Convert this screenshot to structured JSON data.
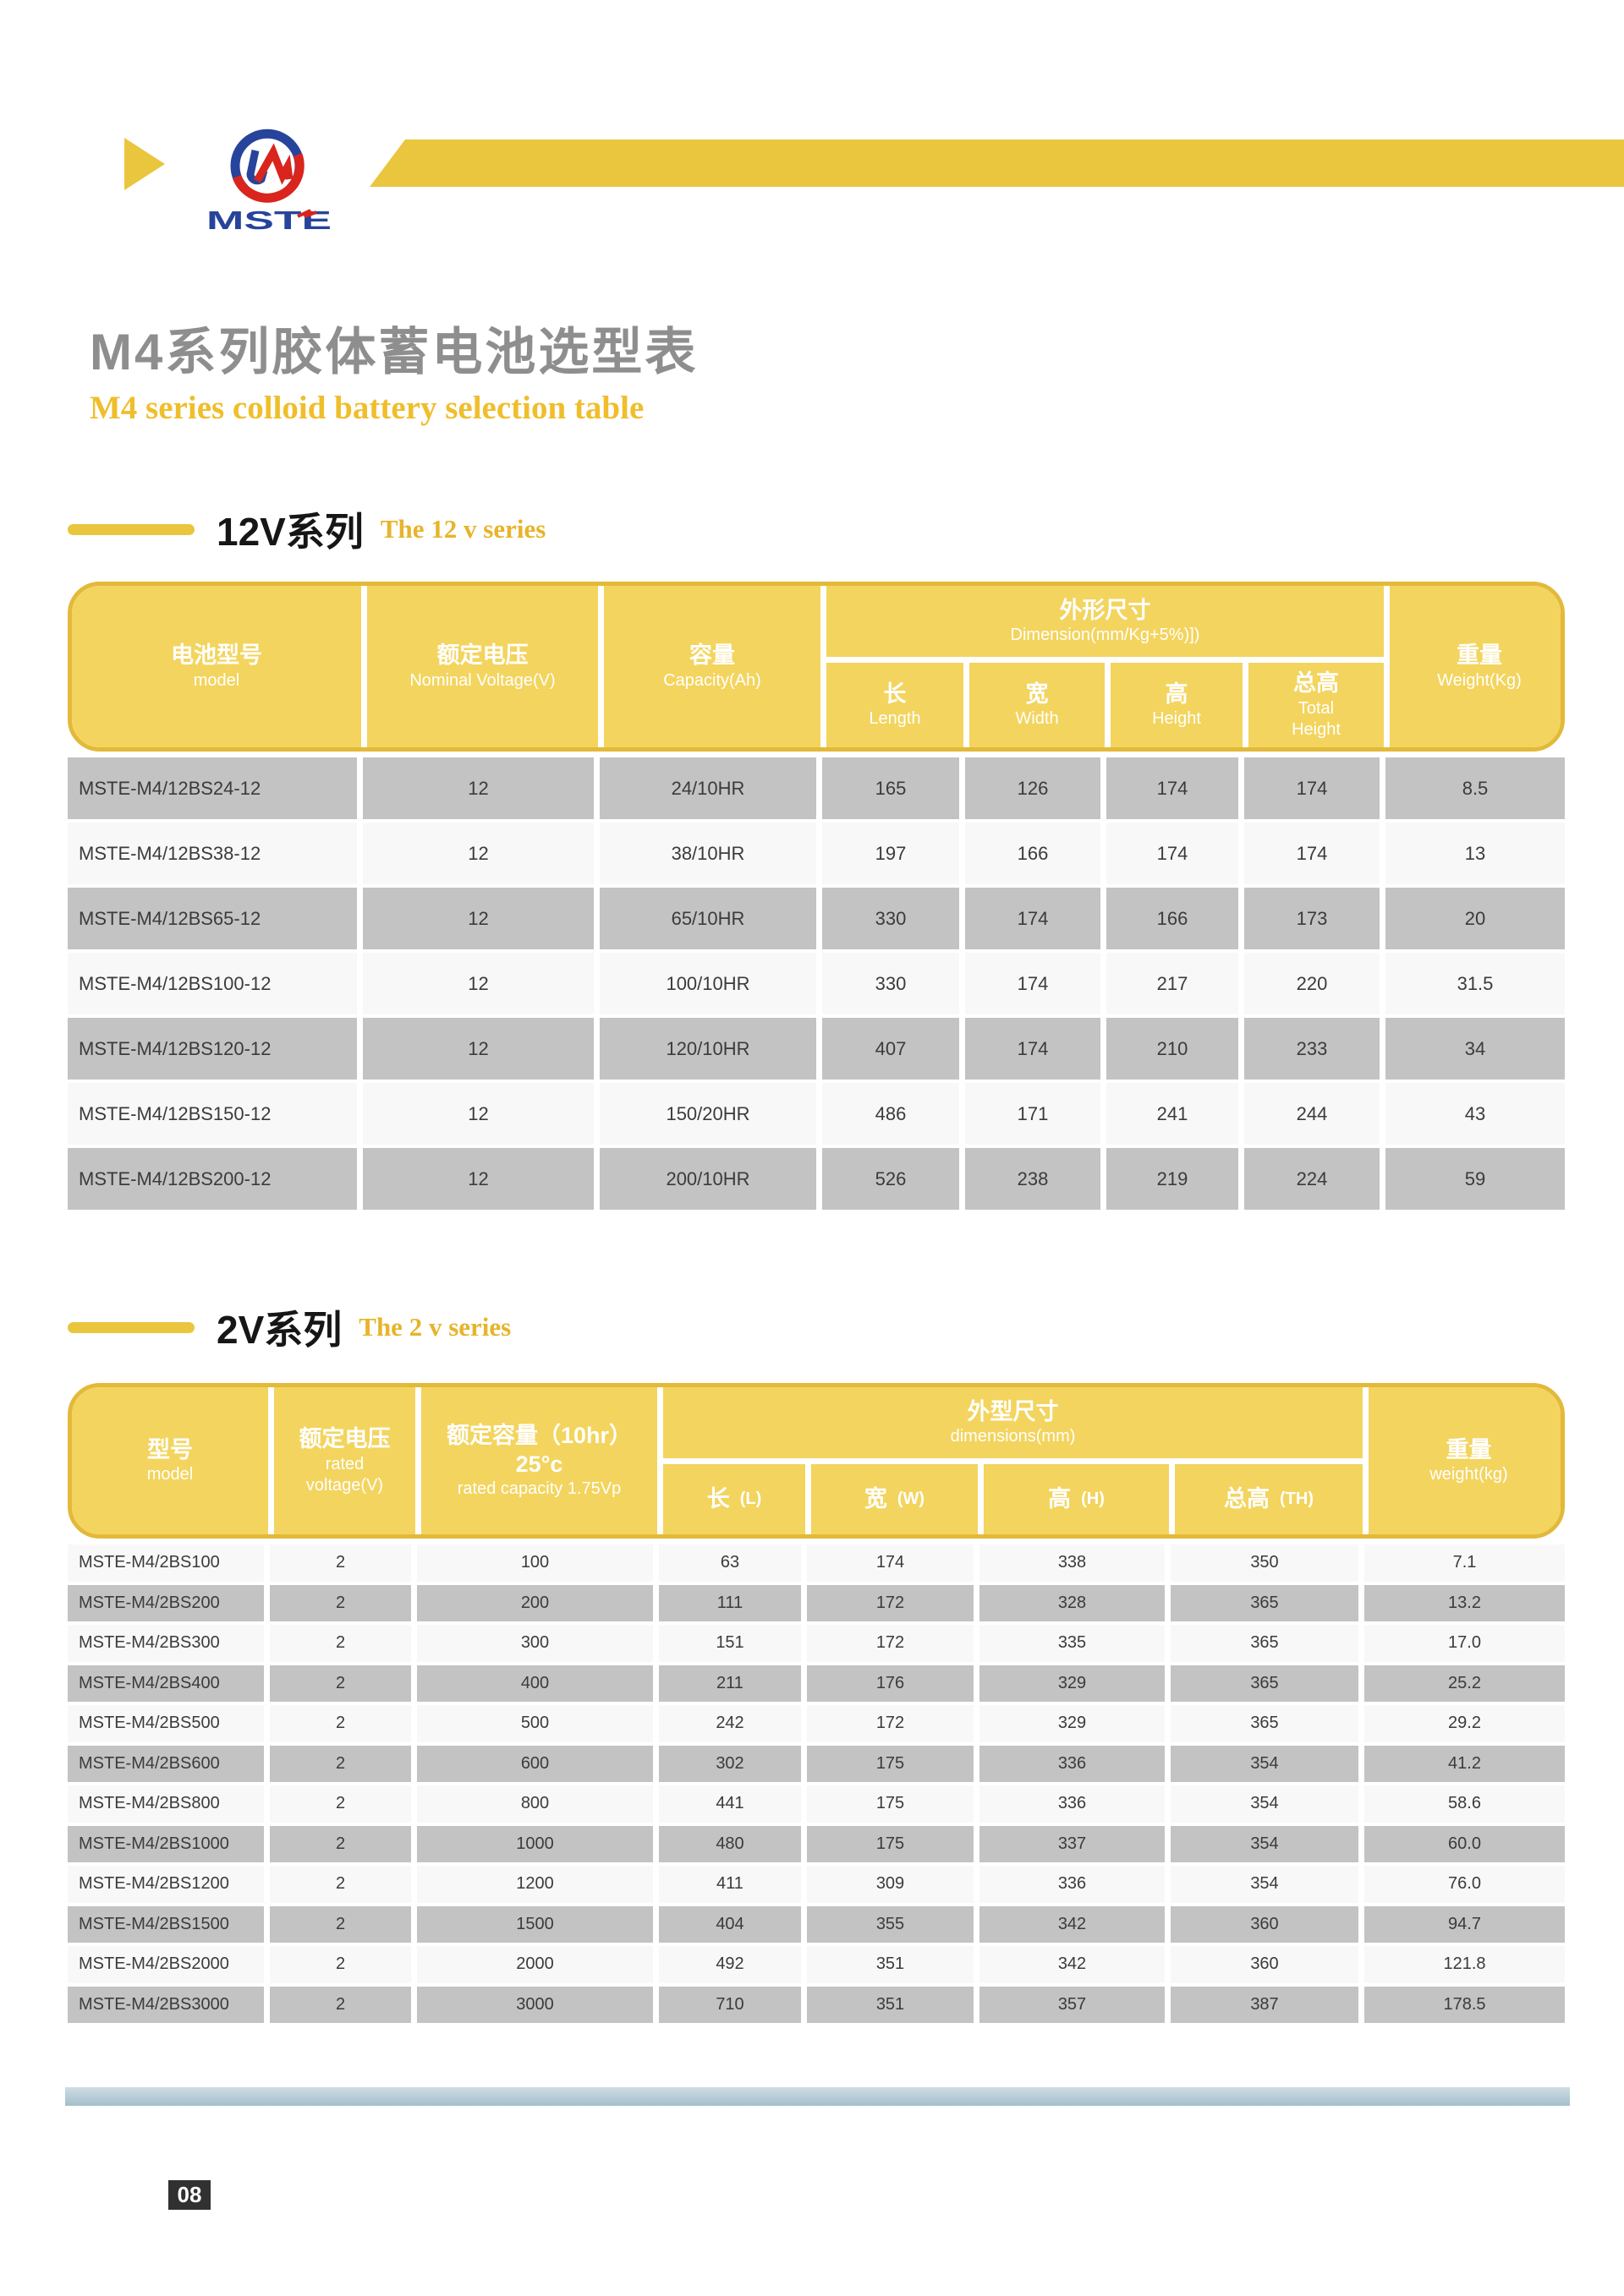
{
  "logo": {
    "text": "MSTE"
  },
  "title": {
    "zh": "M4系列胶体蓄电池选型表",
    "en": "M4 series colloid battery selection table"
  },
  "sections": [
    {
      "zh": "12V系列",
      "en": "The 12 v series"
    },
    {
      "zh": "2V系列",
      "en": "The 2 v series"
    }
  ],
  "table12v": {
    "headers": {
      "model_zh": "电池型号",
      "model_en": "model",
      "voltage_zh": "额定电压",
      "voltage_en": "Nominal Voltage(V)",
      "capacity_zh": "容量",
      "capacity_en": "Capacity(Ah)",
      "dimension_zh": "外形尺寸",
      "dimension_en": "Dimension(mm/Kg+5%)])",
      "length_zh": "长",
      "length_en": "Length",
      "width_zh": "宽",
      "width_en": "Width",
      "height_zh": "高",
      "height_en": "Height",
      "total_height_zh": "总高",
      "total_height_en_1": "Total",
      "total_height_en_2": "Height",
      "weight_zh": "重量",
      "weight_en": "Weight(Kg)"
    },
    "rows": [
      [
        "MSTE-M4/12BS24-12",
        "12",
        "24/10HR",
        "165",
        "126",
        "174",
        "174",
        "8.5"
      ],
      [
        "MSTE-M4/12BS38-12",
        "12",
        "38/10HR",
        "197",
        "166",
        "174",
        "174",
        "13"
      ],
      [
        "MSTE-M4/12BS65-12",
        "12",
        "65/10HR",
        "330",
        "174",
        "166",
        "173",
        "20"
      ],
      [
        "MSTE-M4/12BS100-12",
        "12",
        "100/10HR",
        "330",
        "174",
        "217",
        "220",
        "31.5"
      ],
      [
        "MSTE-M4/12BS120-12",
        "12",
        "120/10HR",
        "407",
        "174",
        "210",
        "233",
        "34"
      ],
      [
        "MSTE-M4/12BS150-12",
        "12",
        "150/20HR",
        "486",
        "171",
        "241",
        "244",
        "43"
      ],
      [
        "MSTE-M4/12BS200-12",
        "12",
        "200/10HR",
        "526",
        "238",
        "219",
        "224",
        "59"
      ]
    ]
  },
  "table2v": {
    "headers": {
      "model_zh": "型号",
      "model_en": "model",
      "voltage_zh": "额定电压",
      "voltage_en_1": "rated",
      "voltage_en_2": "voltage(V)",
      "capacity_zh": "额定容量（10hr）",
      "capacity_temp": "25°c",
      "capacity_en": "rated capacity 1.75Vp",
      "dimension_zh": "外型尺寸",
      "dimension_en": "dimensions(mm)",
      "length_zh": "长",
      "length_en": "(L)",
      "width_zh": "宽",
      "width_en": "(W)",
      "height_zh": "高",
      "height_en": "(H)",
      "total_height_zh": "总高",
      "total_height_en": "(TH)",
      "weight_zh": "重量",
      "weight_en": "weight(kg)"
    },
    "rows": [
      [
        "MSTE-M4/2BS100",
        "2",
        "100",
        "63",
        "174",
        "338",
        "350",
        "7.1"
      ],
      [
        "MSTE-M4/2BS200",
        "2",
        "200",
        "111",
        "172",
        "328",
        "365",
        "13.2"
      ],
      [
        "MSTE-M4/2BS300",
        "2",
        "300",
        "151",
        "172",
        "335",
        "365",
        "17.0"
      ],
      [
        "MSTE-M4/2BS400",
        "2",
        "400",
        "211",
        "176",
        "329",
        "365",
        "25.2"
      ],
      [
        "MSTE-M4/2BS500",
        "2",
        "500",
        "242",
        "172",
        "329",
        "365",
        "29.2"
      ],
      [
        "MSTE-M4/2BS600",
        "2",
        "600",
        "302",
        "175",
        "336",
        "354",
        "41.2"
      ],
      [
        "MSTE-M4/2BS800",
        "2",
        "800",
        "441",
        "175",
        "336",
        "354",
        "58.6"
      ],
      [
        "MSTE-M4/2BS1000",
        "2",
        "1000",
        "480",
        "175",
        "337",
        "354",
        "60.0"
      ],
      [
        "MSTE-M4/2BS1200",
        "2",
        "1200",
        "411",
        "309",
        "336",
        "354",
        "76.0"
      ],
      [
        "MSTE-M4/2BS1500",
        "2",
        "1500",
        "404",
        "355",
        "342",
        "360",
        "94.7"
      ],
      [
        "MSTE-M4/2BS2000",
        "2",
        "2000",
        "492",
        "351",
        "342",
        "360",
        "121.8"
      ],
      [
        "MSTE-M4/2BS3000",
        "2",
        "3000",
        "710",
        "351",
        "357",
        "387",
        "178.5"
      ]
    ]
  },
  "footer": {
    "page_number": "08"
  },
  "colors": {
    "accent_yellow": "#e9c63e",
    "header_yellow": "#f3d45e",
    "header_border": "#e3b93a",
    "row_gray": "#c3c3c3",
    "row_light": "#f8f8f8",
    "divider_blue": "#a4bfcb",
    "title_gray": "#8e8e8e",
    "serif_gold": "#efbe2b",
    "logo_blue": "#27449c",
    "logo_red": "#d9251d"
  }
}
